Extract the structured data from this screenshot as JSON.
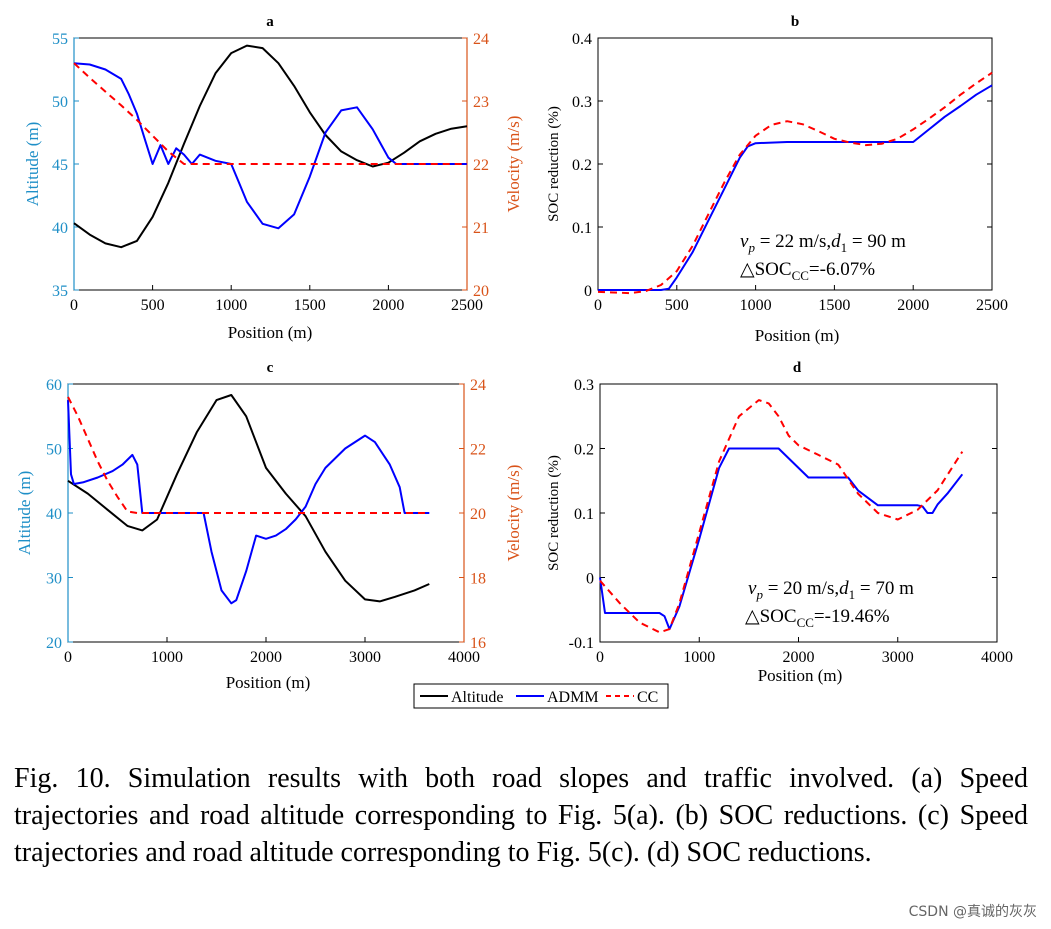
{
  "chart_data": [
    {
      "id": "a",
      "type": "line",
      "title": "a",
      "xlabel": "Position (m)",
      "ylabel_left": "Altitude (m)",
      "ylabel_right": "Velocity (m/s)",
      "xlim": [
        0,
        2500
      ],
      "ylim_left": [
        35,
        55
      ],
      "ylim_right": [
        20,
        24
      ],
      "xticks": [
        "0",
        "500",
        "1000",
        "1500",
        "2000",
        "2500"
      ],
      "yticks_left": [
        "35",
        "40",
        "45",
        "50",
        "55"
      ],
      "yticks_right": [
        "20",
        "21",
        "22",
        "23",
        "24"
      ],
      "series": [
        {
          "name": "Altitude",
          "axis": "left",
          "color": "#000000",
          "x": [
            0,
            100,
            200,
            300,
            400,
            500,
            600,
            700,
            800,
            900,
            1000,
            1100,
            1200,
            1300,
            1400,
            1500,
            1600,
            1700,
            1800,
            1900,
            2000,
            2100,
            2200,
            2300,
            2400,
            2500
          ],
          "y": [
            40.3,
            39.4,
            38.7,
            38.4,
            38.9,
            40.8,
            43.5,
            46.6,
            49.6,
            52.2,
            53.8,
            54.4,
            54.2,
            53.0,
            51.2,
            49.1,
            47.3,
            46.0,
            45.3,
            44.8,
            45.1,
            45.9,
            46.8,
            47.4,
            47.8,
            48.0
          ]
        },
        {
          "name": "ADMM",
          "axis": "right",
          "color": "#0000ff",
          "x": [
            0,
            100,
            200,
            300,
            350,
            400,
            450,
            500,
            550,
            600,
            650,
            700,
            750,
            800,
            900,
            1000,
            1050,
            1100,
            1200,
            1300,
            1400,
            1500,
            1600,
            1700,
            1800,
            1900,
            2000,
            2050,
            2100,
            2500
          ],
          "y": [
            23.6,
            23.58,
            23.5,
            23.35,
            23.1,
            22.8,
            22.4,
            22.0,
            22.3,
            22.0,
            22.25,
            22.15,
            22.0,
            22.15,
            22.05,
            22.0,
            21.7,
            21.4,
            21.05,
            20.98,
            21.2,
            21.8,
            22.5,
            22.85,
            22.9,
            22.55,
            22.1,
            22.0,
            22.0,
            22.0
          ]
        },
        {
          "name": "CC",
          "axis": "right",
          "color": "#ff0000",
          "dashed": true,
          "x": [
            0,
            100,
            200,
            300,
            400,
            500,
            600,
            700,
            2500
          ],
          "y": [
            23.6,
            23.37,
            23.15,
            22.93,
            22.7,
            22.45,
            22.2,
            22.0,
            22.0
          ]
        }
      ]
    },
    {
      "id": "b",
      "type": "line",
      "title": "b",
      "xlabel": "Position (m)",
      "ylabel": "SOC reduction (%)",
      "xlim": [
        0,
        2500
      ],
      "ylim": [
        0,
        0.4
      ],
      "xticks": [
        "0",
        "500",
        "1000",
        "1500",
        "2000",
        "2500"
      ],
      "yticks": [
        "0",
        "0.1",
        "0.2",
        "0.3",
        "0.4"
      ],
      "series": [
        {
          "name": "ADMM",
          "color": "#0000ff",
          "x": [
            0,
            400,
            450,
            500,
            600,
            700,
            800,
            900,
            950,
            1000,
            1200,
            1500,
            1800,
            2000,
            2100,
            2200,
            2300,
            2400,
            2500
          ],
          "y": [
            0,
            0,
            0.002,
            0.02,
            0.06,
            0.11,
            0.16,
            0.21,
            0.228,
            0.233,
            0.235,
            0.235,
            0.235,
            0.235,
            0.255,
            0.275,
            0.292,
            0.31,
            0.325
          ]
        },
        {
          "name": "CC",
          "color": "#ff0000",
          "dashed": true,
          "x": [
            0,
            100,
            200,
            300,
            400,
            500,
            600,
            700,
            800,
            900,
            1000,
            1100,
            1200,
            1300,
            1400,
            1500,
            1600,
            1700,
            1800,
            1900,
            2000,
            2100,
            2200,
            2300,
            2400,
            2500
          ],
          "y": [
            -0.003,
            -0.004,
            -0.005,
            -0.002,
            0.008,
            0.03,
            0.07,
            0.12,
            0.17,
            0.215,
            0.245,
            0.262,
            0.268,
            0.263,
            0.252,
            0.24,
            0.234,
            0.23,
            0.232,
            0.24,
            0.255,
            0.272,
            0.29,
            0.31,
            0.328,
            0.345
          ]
        }
      ],
      "annotations": [
        "v",
        "p",
        " = 22 m/s,",
        "d",
        "1",
        " = 90 m",
        "△SOC",
        "CC",
        "=-6.07%"
      ]
    },
    {
      "id": "c",
      "type": "line",
      "title": "c",
      "xlabel": "Position (m)",
      "ylabel_left": "Altitude (m)",
      "ylabel_right": "Velocity (m/s)",
      "xlim": [
        0,
        4000
      ],
      "ylim_left": [
        20,
        60
      ],
      "ylim_right": [
        16,
        24
      ],
      "xticks": [
        "0",
        "1000",
        "2000",
        "3000",
        "4000"
      ],
      "yticks_left": [
        "20",
        "30",
        "40",
        "50",
        "60"
      ],
      "yticks_right": [
        "16",
        "18",
        "20",
        "22",
        "24"
      ],
      "series": [
        {
          "name": "Altitude",
          "axis": "left",
          "color": "#000000",
          "x": [
            0,
            200,
            400,
            600,
            750,
            900,
            1100,
            1300,
            1500,
            1650,
            1800,
            2000,
            2200,
            2400,
            2600,
            2800,
            3000,
            3150,
            3300,
            3500,
            3650
          ],
          "y": [
            45,
            43,
            40.5,
            38,
            37.3,
            39,
            46,
            52.5,
            57.5,
            58.3,
            55,
            47,
            43,
            39.5,
            34,
            29.5,
            26.6,
            26.3,
            27,
            28,
            29
          ]
        },
        {
          "name": "ADMM",
          "axis": "right",
          "color": "#0000ff",
          "x": [
            0,
            30,
            60,
            150,
            300,
            450,
            550,
            650,
            700,
            750,
            800,
            1000,
            1200,
            1370,
            1450,
            1550,
            1650,
            1700,
            1800,
            1900,
            2000,
            2100,
            2200,
            2300,
            2400,
            2500,
            2600,
            2800,
            3000,
            3100,
            3250,
            3350,
            3400,
            3450,
            3650
          ],
          "y": [
            23.5,
            21.2,
            20.9,
            20.95,
            21.1,
            21.3,
            21.5,
            21.8,
            21.5,
            20.0,
            20.0,
            20.0,
            20.0,
            20.0,
            18.8,
            17.6,
            17.2,
            17.3,
            18.2,
            19.3,
            19.2,
            19.3,
            19.5,
            19.8,
            20.2,
            20.9,
            21.4,
            22.0,
            22.4,
            22.2,
            21.5,
            20.8,
            20.0,
            20.0,
            20.0
          ]
        },
        {
          "name": "CC",
          "axis": "right",
          "color": "#ff0000",
          "dashed": true,
          "x": [
            0,
            100,
            200,
            300,
            400,
            500,
            600,
            700,
            3650
          ],
          "y": [
            23.6,
            23.0,
            22.3,
            21.6,
            21.0,
            20.5,
            20.05,
            20.0,
            20.0
          ]
        }
      ]
    },
    {
      "id": "d",
      "type": "line",
      "title": "d",
      "xlabel": "Position (m)",
      "ylabel": "SOC reduction (%)",
      "xlim": [
        0,
        4000
      ],
      "ylim": [
        -0.1,
        0.3
      ],
      "xticks": [
        "0",
        "1000",
        "2000",
        "3000",
        "4000"
      ],
      "yticks": [
        "-0.1",
        "0",
        "0.1",
        "0.2",
        "0.3"
      ],
      "series": [
        {
          "name": "ADMM",
          "color": "#0000ff",
          "x": [
            0,
            50,
            600,
            650,
            700,
            800,
            1000,
            1200,
            1300,
            1500,
            1800,
            2000,
            2100,
            2500,
            2600,
            2800,
            3200,
            3250,
            3300,
            3350,
            3400,
            3500,
            3650
          ],
          "y": [
            0,
            -0.055,
            -0.055,
            -0.06,
            -0.08,
            -0.045,
            0.06,
            0.17,
            0.2,
            0.2,
            0.2,
            0.17,
            0.155,
            0.155,
            0.135,
            0.112,
            0.112,
            0.11,
            0.1,
            0.1,
            0.113,
            0.13,
            0.16
          ]
        },
        {
          "name": "CC",
          "color": "#ff0000",
          "dashed": true,
          "x": [
            0,
            200,
            400,
            600,
            700,
            800,
            1000,
            1200,
            1400,
            1600,
            1700,
            1800,
            1900,
            2000,
            2200,
            2400,
            2600,
            2800,
            3000,
            3200,
            3400,
            3650
          ],
          "y": [
            -0.005,
            -0.04,
            -0.07,
            -0.085,
            -0.08,
            -0.04,
            0.07,
            0.18,
            0.25,
            0.275,
            0.27,
            0.25,
            0.22,
            0.205,
            0.19,
            0.175,
            0.13,
            0.1,
            0.09,
            0.105,
            0.135,
            0.195
          ]
        }
      ],
      "annotations": [
        "v",
        "p",
        " = 20 m/s,",
        "d",
        "1",
        " = 70 m",
        "△SOC",
        "CC",
        "=-19.46%"
      ]
    }
  ],
  "legend": {
    "entries": [
      "Altitude",
      "ADMM",
      "CC"
    ]
  },
  "caption": "Fig. 10.    Simulation results with both road slopes and traffic involved. (a) Speed trajectories and road altitude corresponding to Fig. 5(a). (b) SOC reductions. (c) Speed trajectories and road altitude corresponding to Fig. 5(c). (d) SOC reductions.",
  "watermark": "CSDN @真诚的灰灰",
  "colors": {
    "left_axis": "#1f8fc7",
    "right_axis": "#d95319",
    "altitude": "#000000",
    "admm": "#0000ff",
    "cc": "#ff0000"
  }
}
